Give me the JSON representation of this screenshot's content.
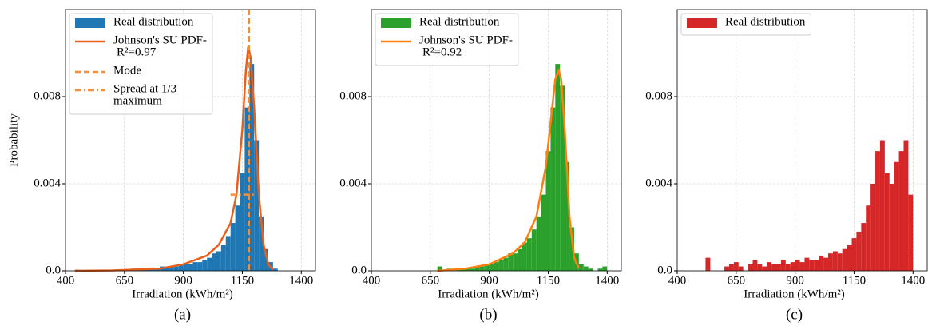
{
  "chart_data": [
    {
      "type": "histogram",
      "panel_label": "(a)",
      "xlabel": "Irradiation (kWh/m²)",
      "ylabel": "Probability",
      "xlim": [
        400,
        1460
      ],
      "ylim": [
        0,
        0.012
      ],
      "xticks": [
        400,
        650,
        900,
        1150,
        1400
      ],
      "yticks": [
        {
          "value": 0,
          "label": "0.0"
        },
        0.004,
        0.008
      ],
      "grid": true,
      "bins": [
        440,
        460,
        480,
        500,
        520,
        540,
        560,
        580,
        600,
        620,
        640,
        660,
        680,
        700,
        720,
        740,
        760,
        780,
        800,
        820,
        840,
        860,
        880,
        900,
        920,
        940,
        960,
        980,
        1000,
        1020,
        1040,
        1060,
        1080,
        1100,
        1120,
        1140,
        1160,
        1180,
        1200,
        1220,
        1240,
        1260,
        1280,
        1300
      ],
      "series": [
        {
          "name": [
            "Real distribution"
          ],
          "color": "#1f77b4",
          "values": [
            5e-05,
            0,
            0,
            5e-05,
            0,
            5e-05,
            0,
            5e-05,
            5e-05,
            0,
            5e-05,
            5e-05,
            0.0001,
            5e-05,
            0.0001,
            0.0001,
            0.00015,
            0.0001,
            0.0002,
            0.00015,
            0.0002,
            0.0002,
            0.00025,
            0.0003,
            0.0003,
            0.0004,
            0.0004,
            0.0005,
            0.0006,
            0.0008,
            0.0009,
            0.0012,
            0.0016,
            0.0022,
            0.003,
            0.0045,
            0.0075,
            0.0095,
            0.006,
            0.0025,
            0.001,
            0.0004,
            0.0001
          ]
        }
      ],
      "curve": {
        "name": [
          "Johnson's SU PDF-",
          "R²=0.97"
        ],
        "color": "#e8601c",
        "x": [
          440,
          600,
          800,
          900,
          1000,
          1050,
          1100,
          1125,
          1150,
          1165,
          1175,
          1185,
          1200,
          1220,
          1240,
          1260,
          1280
        ],
        "y": [
          0,
          2e-05,
          0.0001,
          0.0003,
          0.0007,
          0.0012,
          0.0022,
          0.0035,
          0.0065,
          0.0092,
          0.0103,
          0.0098,
          0.0075,
          0.0035,
          0.0012,
          0.0003,
          5e-05
        ]
      },
      "mode": {
        "name": [
          "Mode"
        ],
        "color": "#f28e3c",
        "value": 1178
      },
      "spread": {
        "name": [
          "Spread at 1/3",
          "maximum"
        ],
        "color": "#f28e3c",
        "value": 0.0035,
        "x": [
          1100,
          1200
        ]
      }
    },
    {
      "type": "histogram",
      "panel_label": "(b)",
      "xlabel": "Irradiation (kWh/m²)",
      "xlim": [
        400,
        1460
      ],
      "ylim": [
        0,
        0.012
      ],
      "xticks": [
        400,
        650,
        900,
        1150,
        1400
      ],
      "yticks": [
        {
          "value": 0,
          "label": "0.0"
        },
        0.004,
        0.008
      ],
      "grid": true,
      "bins": [
        680,
        700,
        720,
        740,
        760,
        780,
        800,
        820,
        840,
        860,
        880,
        900,
        920,
        940,
        960,
        980,
        1000,
        1020,
        1040,
        1060,
        1080,
        1100,
        1120,
        1140,
        1160,
        1180,
        1200,
        1220,
        1240,
        1260,
        1280,
        1300,
        1320,
        1340,
        1360,
        1380,
        1400
      ],
      "series": [
        {
          "name": [
            "Real distribution"
          ],
          "color": "#2ca02c",
          "values": [
            0.0002,
            0,
            0.0001,
            0,
            0.0001,
            0.0001,
            0.00015,
            0.0001,
            0.0002,
            0.0002,
            0.0003,
            0.0003,
            0.0004,
            0.0005,
            0.0006,
            0.0008,
            0.0008,
            0.001,
            0.0013,
            0.0015,
            0.0019,
            0.0025,
            0.0035,
            0.0055,
            0.0075,
            0.0095,
            0.0085,
            0.005,
            0.002,
            0.0008,
            0.0003,
            0.0002,
            0.0001,
            0,
            0.0001,
            0.0002
          ]
        }
      ],
      "curve": {
        "name": [
          "Johnson's SU PDF-",
          "R²=0.92"
        ],
        "color": "#ff7f0e",
        "x": [
          680,
          800,
          900,
          1000,
          1050,
          1100,
          1140,
          1160,
          1180,
          1195,
          1205,
          1220,
          1240,
          1260,
          1280
        ],
        "y": [
          0,
          0.0001,
          0.0003,
          0.0008,
          0.0013,
          0.0025,
          0.0048,
          0.0068,
          0.0088,
          0.0092,
          0.0088,
          0.0065,
          0.0025,
          0.0006,
          0.0001
        ]
      }
    },
    {
      "type": "histogram",
      "panel_label": "(c)",
      "xlabel": "Irradiation (kWh/m²)",
      "xlim": [
        400,
        1460
      ],
      "ylim": [
        0,
        0.012
      ],
      "xticks": [
        400,
        650,
        900,
        1150,
        1400
      ],
      "yticks": [
        {
          "value": 0,
          "label": "0.0"
        },
        0.004,
        0.008
      ],
      "grid": true,
      "bins": [
        520,
        540,
        560,
        580,
        600,
        620,
        640,
        660,
        680,
        700,
        720,
        740,
        760,
        780,
        800,
        820,
        840,
        860,
        880,
        900,
        920,
        940,
        960,
        980,
        1000,
        1020,
        1040,
        1060,
        1080,
        1100,
        1120,
        1140,
        1160,
        1180,
        1200,
        1220,
        1240,
        1260,
        1280,
        1300,
        1320,
        1340,
        1360,
        1380,
        1400
      ],
      "series": [
        {
          "name": [
            "Real distribution"
          ],
          "color": "#d62728",
          "values": [
            0.0006,
            0,
            0,
            0,
            0.0002,
            0.0003,
            0.0004,
            0.0002,
            0,
            0.0003,
            0.0005,
            0.0003,
            0.0002,
            0.0004,
            0.0003,
            0.0003,
            0.0005,
            0.0003,
            0.0004,
            0.0005,
            0.0004,
            0.0006,
            0.0005,
            0.0005,
            0.0007,
            0.0006,
            0.0008,
            0.0009,
            0.0008,
            0.001,
            0.0012,
            0.0015,
            0.0018,
            0.0022,
            0.003,
            0.004,
            0.0055,
            0.006,
            0.0045,
            0.004,
            0.005,
            0.0055,
            0.006,
            0.0035
          ]
        }
      ]
    }
  ]
}
